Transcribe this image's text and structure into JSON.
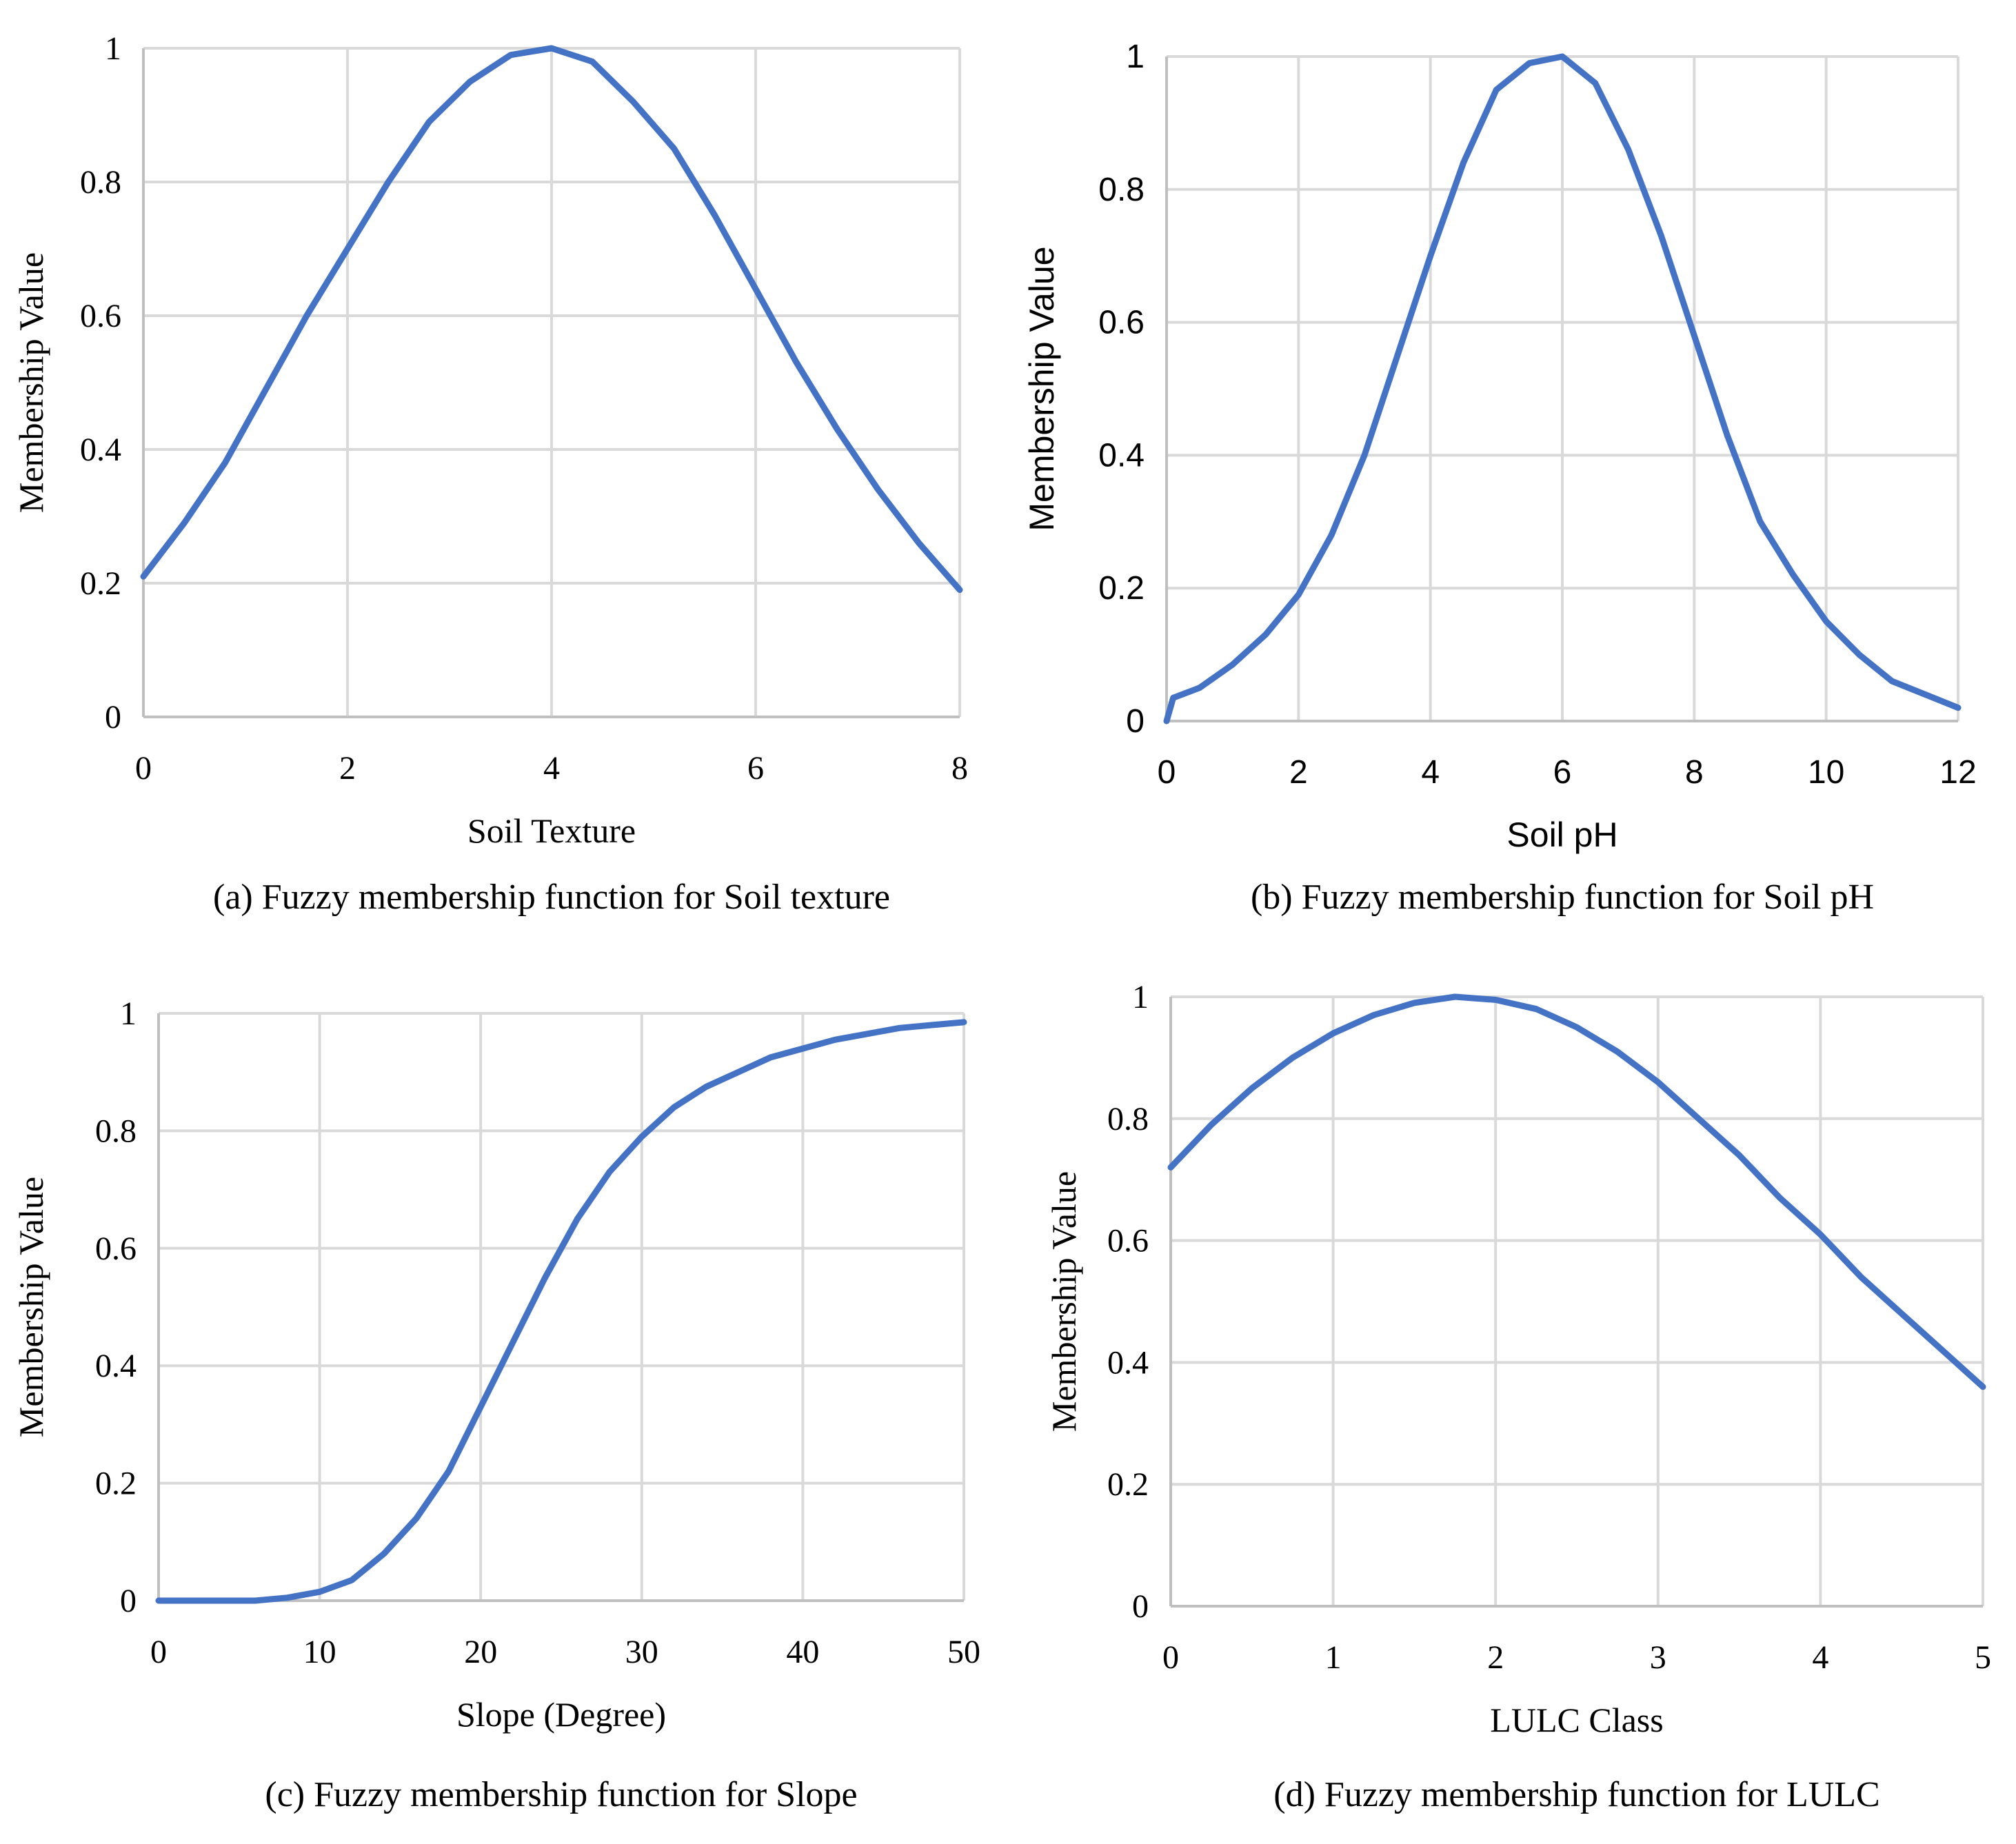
{
  "chart_data": [
    {
      "id": "a",
      "type": "line",
      "title": "",
      "caption": "(a) Fuzzy membership function for Soil texture",
      "xlabel": "Soil Texture",
      "ylabel": "Membership Value",
      "xlim": [
        0,
        8
      ],
      "ylim": [
        0,
        1
      ],
      "xticks": [
        0,
        2,
        4,
        6,
        8
      ],
      "xtick_labels": [
        "0",
        "2",
        "4",
        "6",
        "8"
      ],
      "yticks": [
        0,
        0.2,
        0.4,
        0.6,
        0.8,
        1
      ],
      "ytick_labels": [
        "0",
        "0.2",
        "0.4",
        "0.6",
        "0.8",
        "1"
      ],
      "grid": true,
      "font": "serif",
      "series": [
        {
          "name": "Soil Texture",
          "color": "#4472c4",
          "x": [
            0,
            0.4,
            0.8,
            1.2,
            1.6,
            2.0,
            2.4,
            2.8,
            3.2,
            3.6,
            4.0,
            4.4,
            4.8,
            5.2,
            5.6,
            6.0,
            6.4,
            6.8,
            7.2,
            7.6,
            8.0
          ],
          "y": [
            0.21,
            0.29,
            0.38,
            0.49,
            0.6,
            0.7,
            0.8,
            0.89,
            0.95,
            0.99,
            1.0,
            0.98,
            0.92,
            0.85,
            0.75,
            0.64,
            0.53,
            0.43,
            0.34,
            0.26,
            0.19
          ]
        }
      ]
    },
    {
      "id": "b",
      "type": "line",
      "title": "",
      "caption": "(b) Fuzzy membership function for Soil pH",
      "xlabel": "Soil pH",
      "ylabel": "Membership Value",
      "xlim": [
        0,
        12
      ],
      "ylim": [
        0,
        1
      ],
      "xticks": [
        0,
        2,
        4,
        6,
        8,
        10,
        12
      ],
      "xtick_labels": [
        "0",
        "2",
        "4",
        "6",
        "8",
        "10",
        "12"
      ],
      "yticks": [
        0,
        0.2,
        0.4,
        0.6,
        0.8,
        1
      ],
      "ytick_labels": [
        "0",
        "0.2",
        "0.4",
        "0.6",
        "0.8",
        "1"
      ],
      "grid": true,
      "font": "sans",
      "series": [
        {
          "name": "Soil pH",
          "color": "#4472c4",
          "x": [
            0,
            0.1,
            0.5,
            1,
            1.5,
            2,
            2.5,
            3,
            3.5,
            4,
            4.5,
            5,
            5.5,
            6,
            6.5,
            7,
            7.5,
            8,
            8.5,
            9,
            9.5,
            10,
            10.5,
            11,
            11.5,
            12
          ],
          "y": [
            0.0,
            0.035,
            0.05,
            0.085,
            0.13,
            0.19,
            0.28,
            0.4,
            0.55,
            0.7,
            0.84,
            0.95,
            0.99,
            1.0,
            0.96,
            0.86,
            0.73,
            0.58,
            0.43,
            0.3,
            0.22,
            0.15,
            0.1,
            0.06,
            0.04,
            0.02
          ]
        }
      ]
    },
    {
      "id": "c",
      "type": "line",
      "title": "",
      "caption": "(c) Fuzzy membership function for Slope",
      "xlabel": "Slope (Degree)",
      "ylabel": "Membership Value",
      "xlim": [
        0,
        50
      ],
      "ylim": [
        0,
        1
      ],
      "xticks": [
        0,
        10,
        20,
        30,
        40,
        50
      ],
      "xtick_labels": [
        "0",
        "10",
        "20",
        "30",
        "40",
        "50"
      ],
      "yticks": [
        0,
        0.2,
        0.4,
        0.6,
        0.8,
        1
      ],
      "ytick_labels": [
        "0",
        "0.2",
        "0.4",
        "0.6",
        "0.8",
        "1"
      ],
      "grid": true,
      "font": "serif",
      "series": [
        {
          "name": "Slope",
          "color": "#4472c4",
          "x": [
            0,
            6,
            8,
            10,
            12,
            14,
            16,
            18,
            20,
            22,
            24,
            26,
            28,
            30,
            32,
            34,
            36,
            38,
            40,
            42,
            44,
            46,
            48,
            50
          ],
          "y": [
            0,
            0,
            0.005,
            0.015,
            0.035,
            0.08,
            0.14,
            0.22,
            0.33,
            0.44,
            0.55,
            0.65,
            0.73,
            0.79,
            0.84,
            0.875,
            0.9,
            0.925,
            0.94,
            0.955,
            0.965,
            0.975,
            0.98,
            0.985
          ]
        }
      ]
    },
    {
      "id": "d",
      "type": "line",
      "title": "",
      "caption": "(d) Fuzzy membership function for LULC",
      "xlabel": "LULC Class",
      "ylabel": "Membership Value",
      "xlim": [
        0,
        5
      ],
      "ylim": [
        0,
        1
      ],
      "xticks": [
        0,
        1,
        2,
        3,
        4,
        5
      ],
      "xtick_labels": [
        "0",
        "1",
        "2",
        "3",
        "4",
        "5"
      ],
      "yticks": [
        0,
        0.2,
        0.4,
        0.6,
        0.8,
        1
      ],
      "ytick_labels": [
        "0",
        "0.2",
        "0.4",
        "0.6",
        "0.8",
        "1"
      ],
      "grid": true,
      "font": "serif",
      "series": [
        {
          "name": "LULC",
          "color": "#4472c4",
          "x": [
            0,
            0.25,
            0.5,
            0.75,
            1.0,
            1.25,
            1.5,
            1.75,
            2.0,
            2.25,
            2.5,
            2.75,
            3.0,
            3.25,
            3.5,
            3.75,
            4.0,
            4.25,
            4.5,
            4.75,
            5.0
          ],
          "y": [
            0.72,
            0.79,
            0.85,
            0.9,
            0.94,
            0.97,
            0.99,
            1.0,
            0.995,
            0.98,
            0.95,
            0.91,
            0.86,
            0.8,
            0.74,
            0.67,
            0.61,
            0.54,
            0.48,
            0.42,
            0.36
          ]
        }
      ]
    }
  ]
}
